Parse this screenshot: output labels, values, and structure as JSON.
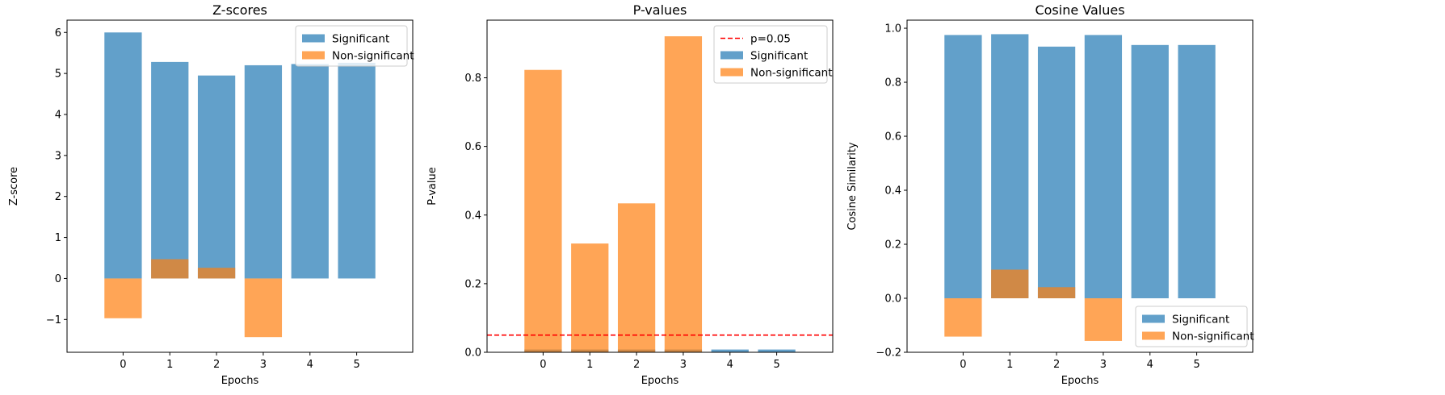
{
  "colors": {
    "significant": "#1f77b4",
    "non_significant": "#ff7f0e",
    "threshold": "#ff0000"
  },
  "chart_data": [
    {
      "type": "bar",
      "title": "Z-scores",
      "xlabel": "Epochs",
      "ylabel": "Z-score",
      "categories": [
        "0",
        "1",
        "2",
        "3",
        "4",
        "5"
      ],
      "ylim": [
        -1.8,
        6.3
      ],
      "yticks": [
        -1,
        0,
        1,
        2,
        3,
        4,
        5,
        6
      ],
      "ytick_labels": [
        "−1",
        "0",
        "1",
        "2",
        "3",
        "4",
        "5",
        "6"
      ],
      "series": [
        {
          "name": "Significant",
          "values": [
            6.0,
            5.28,
            4.95,
            5.2,
            5.23,
            5.26
          ]
        },
        {
          "name": "Non-significant",
          "values": [
            -0.97,
            0.47,
            0.26,
            -1.43,
            0,
            0
          ]
        }
      ],
      "legend": "top-right"
    },
    {
      "type": "bar",
      "title": "P-values",
      "xlabel": "Epochs",
      "ylabel": "P-value",
      "categories": [
        "0",
        "1",
        "2",
        "3",
        "4",
        "5"
      ],
      "ylim": [
        0,
        0.968
      ],
      "yticks": [
        0.0,
        0.2,
        0.4,
        0.6,
        0.8
      ],
      "ytick_labels": [
        "0.0",
        "0.2",
        "0.4",
        "0.6",
        "0.8"
      ],
      "threshold": {
        "name": "p=0.05",
        "value": 0.05
      },
      "series": [
        {
          "name": "Significant",
          "values": [
            0.008,
            0.008,
            0.008,
            0.008,
            0.008,
            0.008
          ]
        },
        {
          "name": "Non-significant",
          "values": [
            0.823,
            0.317,
            0.434,
            0.921,
            0,
            0
          ]
        }
      ],
      "legend": "top-right"
    },
    {
      "type": "bar",
      "title": "Cosine Values",
      "xlabel": "Epochs",
      "ylabel": "Cosine Similarity",
      "categories": [
        "0",
        "1",
        "2",
        "3",
        "4",
        "5"
      ],
      "ylim": [
        -0.2,
        1.03
      ],
      "yticks": [
        -0.2,
        0.0,
        0.2,
        0.4,
        0.6,
        0.8,
        1.0
      ],
      "ytick_labels": [
        "−0.2",
        "0.0",
        "0.2",
        "0.4",
        "0.6",
        "0.8",
        "1.0"
      ],
      "series": [
        {
          "name": "Significant",
          "values": [
            0.975,
            0.978,
            0.932,
            0.975,
            0.938,
            0.938
          ]
        },
        {
          "name": "Non-significant",
          "values": [
            -0.142,
            0.106,
            0.041,
            -0.158,
            0,
            0
          ]
        }
      ],
      "legend": "bottom-right"
    }
  ]
}
